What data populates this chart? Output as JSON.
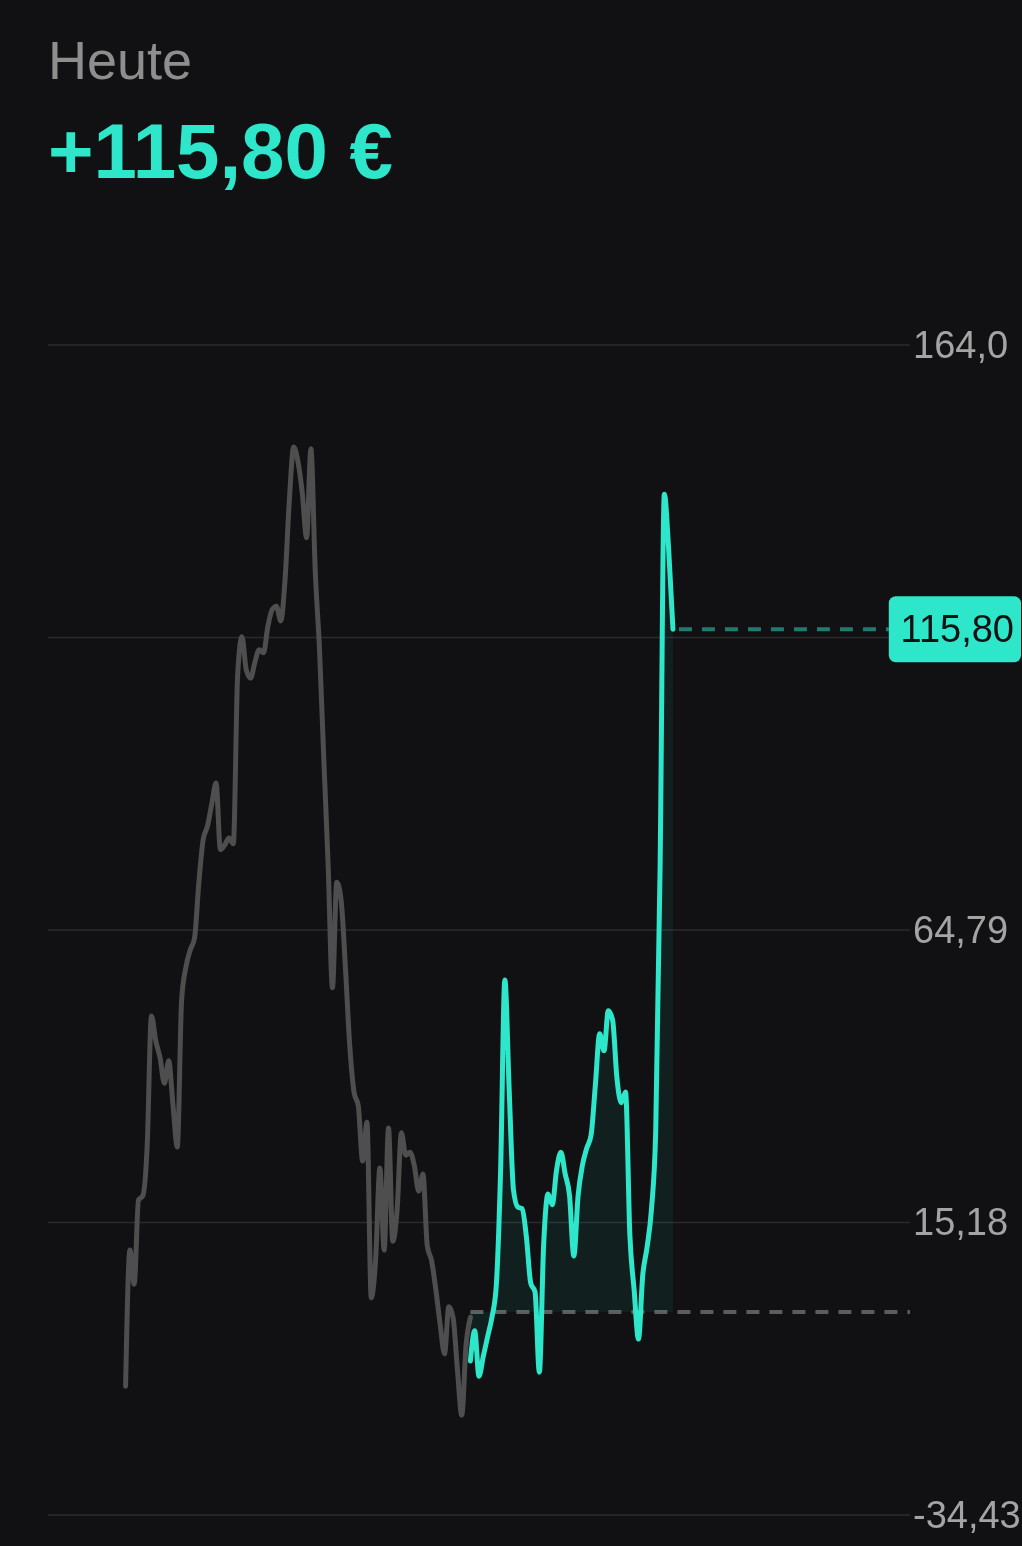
{
  "chart_data": {
    "type": "line",
    "title": "Heute",
    "subtitle": "+115,80 €",
    "categories": [
      null,
      null,
      null,
      null,
      null,
      null,
      null,
      null,
      null,
      null,
      null,
      null,
      null,
      null,
      null,
      null,
      null,
      null,
      null,
      null,
      null,
      null,
      null,
      null,
      null,
      null,
      null,
      null,
      null,
      null,
      null,
      null,
      null,
      null,
      null,
      null,
      null,
      null,
      null,
      null,
      null,
      null,
      null,
      null,
      null,
      null,
      null,
      null,
      null,
      null,
      null,
      null,
      null,
      null,
      null,
      null,
      null,
      null,
      null,
      null,
      null,
      null,
      null,
      null,
      null,
      null,
      null,
      null,
      null,
      null,
      null,
      null,
      null,
      null,
      null,
      null,
      null,
      null,
      null,
      null,
      null,
      null,
      null,
      null,
      null,
      null,
      null,
      null,
      null,
      null,
      null,
      null,
      null,
      null,
      null,
      null,
      null,
      null,
      null,
      null,
      null,
      null,
      null,
      null,
      null,
      null,
      null,
      null,
      null,
      null,
      null,
      null,
      null,
      null,
      null,
      null,
      null,
      null,
      null,
      null,
      null,
      null,
      null,
      null,
      null,
      null,
      null,
      null,
      null,
      null,
      null,
      null,
      null,
      null,
      null,
      null,
      null,
      null,
      null,
      null,
      null,
      null,
      null,
      null,
      null,
      null,
      null,
      null,
      null,
      null,
      null,
      null,
      null,
      null,
      null,
      null,
      null,
      null,
      null,
      null,
      null,
      null,
      null,
      null,
      null,
      null,
      null,
      null,
      null,
      null,
      null,
      null,
      null,
      null,
      null,
      null,
      null,
      null,
      null,
      null,
      null,
      null,
      null,
      null,
      null,
      null,
      null,
      null,
      null,
      null,
      null,
      null,
      null,
      null,
      null,
      null,
      null,
      null,
      null,
      null,
      null
    ],
    "series": [
      {
        "color": "#4e4e4e",
        "values": [
          null,
          null,
          null,
          null,
          null,
          null,
          null,
          null,
          null,
          null,
          null,
          null,
          null,
          null,
          null,
          null,
          null,
          null,
          -12.6,
          10.5,
          4.7,
          19.0,
          19.7,
          28.0,
          50.2,
          46.0,
          43.1,
          38.8,
          42.6,
          35.1,
          28.0,
          52.9,
          58.5,
          61.4,
          63.4,
          72.8,
          80.1,
          82.4,
          86.2,
          89.7,
          78.4,
          79.2,
          80.4,
          79.4,
          108.0,
          114.5,
          108.9,
          107.5,
          110.2,
          112.3,
          111.8,
          116.2,
          119.1,
          119.7,
          117.2,
          124.2,
          137.7,
          146.7,
          144.2,
          138.9,
          131.3,
          146.4,
          125.8,
          112.3,
          93.6,
          75.8,
          55.0,
          72.9,
          69.9,
          58.5,
          45.3,
          37.3,
          34.9,
          25.6,
          32.2,
          2.4,
          8.7,
          24.4,
          10.5,
          31.2,
          12.0,
          17.3,
          30.4,
          26.6,
          27.1,
          24.8,
          20.5,
          23.4,
          11.2,
          8.7,
          3.7,
          -2.2,
          -7.1,
          0.9,
          -1.0,
          -9.8,
          -17.5,
          -5.6,
          -0.9,
          null,
          null,
          null,
          null,
          null,
          null,
          null,
          null,
          null,
          null,
          null,
          null,
          null,
          null,
          null,
          null,
          null,
          null,
          null,
          null,
          null,
          null,
          null,
          null,
          null,
          null,
          null,
          null,
          null,
          null,
          null,
          null,
          null,
          null,
          null,
          null,
          null,
          null,
          null,
          null,
          null,
          null,
          null,
          null,
          null,
          null,
          null,
          null,
          null,
          null,
          null,
          null,
          null,
          null,
          null,
          null,
          null,
          null,
          null,
          null,
          null,
          null,
          null,
          null,
          null,
          null,
          null,
          null,
          null,
          null,
          null,
          null,
          null,
          null,
          null,
          null,
          null,
          null,
          null,
          null,
          null,
          null,
          null,
          null,
          null,
          null,
          null,
          null,
          null,
          null,
          null,
          null,
          null,
          null,
          null,
          null,
          null,
          null,
          null,
          null,
          null,
          null
        ]
      },
      {
        "type": "area",
        "color": "#2ee6ca",
        "values": [
          null,
          null,
          null,
          null,
          null,
          null,
          null,
          null,
          null,
          null,
          null,
          null,
          null,
          null,
          null,
          null,
          null,
          null,
          null,
          null,
          null,
          null,
          null,
          null,
          null,
          null,
          null,
          null,
          null,
          null,
          null,
          null,
          null,
          null,
          null,
          null,
          null,
          null,
          null,
          null,
          null,
          null,
          null,
          null,
          null,
          null,
          null,
          null,
          null,
          null,
          null,
          null,
          null,
          null,
          null,
          null,
          null,
          null,
          null,
          null,
          null,
          null,
          null,
          null,
          null,
          null,
          null,
          null,
          null,
          null,
          null,
          null,
          null,
          null,
          null,
          null,
          null,
          null,
          null,
          null,
          null,
          null,
          null,
          null,
          null,
          null,
          null,
          null,
          null,
          null,
          null,
          null,
          null,
          null,
          null,
          null,
          null,
          null,
          -8.3,
          -3.2,
          -10.9,
          -7.5,
          -4.2,
          -0.9,
          4.4,
          23.7,
          56.3,
          37.7,
          20.7,
          17.8,
          17.5,
          12.7,
          4.9,
          3.4,
          -10.2,
          11.4,
          20.0,
          18.2,
          24.1,
          27.1,
          23.4,
          19.8,
          9.5,
          19.8,
          24.9,
          27.8,
          30.0,
          38.5,
          47.2,
          44.3,
          51.1,
          49.5,
          39.7,
          35.5,
          37.3,
          13.1,
          3.7,
          -4.6,
          6.3,
          11.0,
          17.3,
          30.7,
          74.5,
          138.7,
          129.4,
          115.8,
          null,
          null,
          null,
          null,
          null,
          null,
          null,
          null,
          null,
          null,
          null,
          null,
          null,
          null,
          null,
          null,
          null,
          null,
          null,
          null,
          null,
          null,
          null,
          null,
          null,
          null,
          null,
          null,
          null,
          null,
          null,
          null,
          null,
          null,
          null,
          null,
          null,
          null,
          null,
          null,
          null,
          null,
          null,
          null,
          null,
          null,
          null,
          null,
          null,
          null,
          null,
          null,
          null,
          null,
          null
        ]
      }
    ],
    "ylim": [
      -34.43,
      164.0
    ],
    "yticks": [
      {
        "value": -34.43,
        "label": "-34,43"
      },
      {
        "value": 15.18,
        "label": "15,18"
      },
      {
        "value": 64.79,
        "label": "64,79"
      },
      {
        "value": 114.4,
        "label": null
      },
      {
        "value": 164.0,
        "label": "164,0"
      }
    ],
    "grid": "y",
    "tick_labels": "y",
    "ref_lines": [
      {
        "axis": "y",
        "value": 0,
        "color": "#5c5c5c",
        "line_style": "dashed"
      },
      {
        "axis": "y",
        "value": 115.8,
        "label": "115,80",
        "color": "#217a6d",
        "line_style": "dashed"
      }
    ]
  }
}
